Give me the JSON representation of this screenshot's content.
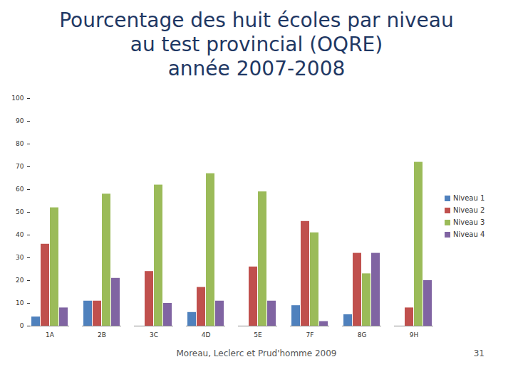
{
  "chart_data": {
    "type": "bar",
    "title": [
      "Pourcentage des huit écoles par niveau",
      "au test provincial (OQRE)",
      "année 2007-2008"
    ],
    "categories": [
      "1A",
      "2B",
      "3C",
      "4D",
      "5E",
      "7F",
      "8G",
      "9H"
    ],
    "series": [
      {
        "name": "Niveau 1",
        "color": "#4f81bd",
        "values": [
          4,
          11,
          0,
          6,
          0,
          9,
          5,
          0
        ]
      },
      {
        "name": "Niveau 2",
        "color": "#c0504d",
        "values": [
          36,
          11,
          24,
          17,
          26,
          46,
          32,
          8
        ]
      },
      {
        "name": "Niveau 3",
        "color": "#9bbb59",
        "values": [
          52,
          58,
          62,
          67,
          59,
          41,
          23,
          72
        ]
      },
      {
        "name": "Niveau 4",
        "color": "#8064a2",
        "values": [
          8,
          21,
          10,
          11,
          11,
          2,
          32,
          20
        ]
      }
    ],
    "ylim": [
      0,
      100
    ],
    "yticks": [
      0,
      10,
      20,
      30,
      40,
      50,
      60,
      70,
      80,
      90,
      100
    ],
    "grid": false,
    "legend": "right",
    "annotations": [
      "Moreau, Leclerc et Prud'homme 2009",
      "31"
    ]
  }
}
